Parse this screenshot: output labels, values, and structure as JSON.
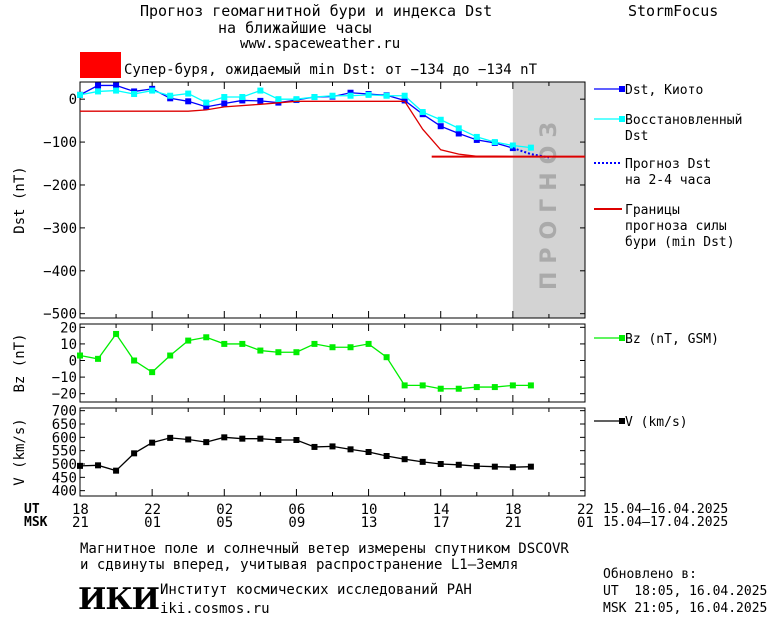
{
  "header": {
    "title_line1": "Прогноз геомагнитной бури и индекса Dst",
    "title_line2": "на ближайшие часы",
    "site": "www.spaceweather.ru",
    "brand": "StormFocus",
    "alert_text": "Супер-буря, ожидаемый min Dst: от −134 до −134 nT",
    "alert_color": "#ff0000"
  },
  "chart_data": [
    {
      "type": "line",
      "ylabel": "Dst (nT)",
      "ylim": [
        -510,
        40
      ],
      "yticks": [
        0,
        -100,
        -200,
        -300,
        -400,
        -500
      ],
      "ytick_labels": [
        "0",
        "−100",
        "−200",
        "−300",
        "−400",
        "−500"
      ],
      "forecast_band_label": "ПРОГНОЗ",
      "x": [
        18.0,
        19.0,
        20.0,
        21.0,
        22.0,
        23.0,
        24.0,
        25.0,
        26.0,
        27.0,
        28.0,
        29.0,
        30.0,
        31.0,
        32.0,
        33.0,
        34.0,
        35.0,
        36.0,
        37.0,
        38.0,
        39.0,
        40.0,
        41.0,
        42.0,
        43.0
      ],
      "series": [
        {
          "name": "Dst, Киото",
          "color": "#0000ff",
          "x": [
            18,
            19,
            20,
            21,
            22,
            23,
            24,
            25,
            26,
            27,
            28,
            29,
            30,
            31,
            32,
            33,
            34,
            35,
            36,
            37,
            38,
            39,
            40,
            41,
            42
          ],
          "values": [
            10,
            32,
            32,
            18,
            24,
            2,
            -5,
            -18,
            -10,
            -3,
            -4,
            -8,
            -2,
            5,
            6,
            15,
            12,
            9,
            -3,
            -35,
            -63,
            -80,
            -95,
            -102,
            -114
          ]
        },
        {
          "name": "Восстановленный Dst",
          "color": "#00ffff",
          "x": [
            18,
            19,
            20,
            21,
            22,
            23,
            24,
            25,
            26,
            27,
            28,
            29,
            30,
            31,
            32,
            33,
            34,
            35,
            36,
            37,
            38,
            39,
            40,
            41,
            42,
            43
          ],
          "values": [
            10,
            18,
            20,
            12,
            20,
            8,
            13,
            -8,
            5,
            5,
            20,
            0,
            0,
            5,
            8,
            8,
            10,
            8,
            8,
            -30,
            -48,
            -68,
            -88,
            -100,
            -108,
            -113
          ]
        },
        {
          "name": "Прогноз Dst на 2-4 часа",
          "color": "#0000ff",
          "x": [
            42,
            43,
            44
          ],
          "values": [
            -114,
            -128,
            -136
          ]
        },
        {
          "name": "Границы прогноза силы бури (min Dst)",
          "color": "#dd0000",
          "x": [
            18,
            21,
            24,
            25,
            26,
            28,
            30,
            32,
            34,
            36,
            37,
            38,
            39,
            40,
            41,
            42,
            43,
            44,
            45,
            46
          ],
          "values": [
            -28,
            -28,
            -28,
            -25,
            -18,
            -12,
            -5,
            -5,
            -5,
            -5,
            -70,
            -118,
            -128,
            -133,
            -133,
            -134,
            -134,
            -134,
            -134,
            -134
          ]
        }
      ]
    },
    {
      "type": "line",
      "ylabel": "Bz (nT)",
      "ylim": [
        -25,
        22
      ],
      "yticks": [
        20,
        10,
        0,
        -10,
        -20
      ],
      "ytick_labels": [
        "20",
        "10",
        "0",
        "−10",
        "−20"
      ],
      "series": [
        {
          "name": "Bz (nT, GSM)",
          "color": "#00ee00",
          "x": [
            18,
            19,
            20,
            21,
            22,
            23,
            24,
            25,
            26,
            27,
            28,
            29,
            30,
            31,
            32,
            33,
            34,
            35,
            36,
            37,
            38,
            39,
            40,
            41,
            42,
            43
          ],
          "values": [
            3,
            1,
            16,
            0,
            -7,
            3,
            12,
            14,
            10,
            10,
            6,
            5,
            5,
            10,
            8,
            8,
            10,
            2,
            -15,
            -15,
            -17,
            -17,
            -16,
            -16,
            -15,
            -15
          ]
        }
      ]
    },
    {
      "type": "line",
      "ylabel": "V (km/s)",
      "ylim": [
        380,
        710
      ],
      "yticks": [
        700,
        650,
        600,
        550,
        500,
        450,
        400
      ],
      "ytick_labels": [
        "700",
        "650",
        "600",
        "550",
        "500",
        "450",
        "400"
      ],
      "series": [
        {
          "name": "V (km/s)",
          "color": "#000000",
          "x": [
            18,
            19,
            20,
            21,
            22,
            23,
            24,
            25,
            26,
            27,
            28,
            29,
            30,
            31,
            32,
            33,
            34,
            35,
            36,
            37,
            38,
            39,
            40,
            41,
            42,
            43
          ],
          "values": [
            493,
            495,
            475,
            540,
            580,
            598,
            592,
            582,
            600,
            595,
            595,
            590,
            590,
            564,
            566,
            555,
            545,
            530,
            518,
            508,
            500,
            497,
            492,
            490,
            488,
            490
          ]
        }
      ]
    }
  ],
  "time_axis": {
    "ut_label": "UT",
    "msk_label": "MSK",
    "ut_ticks": [
      "18",
      "22",
      "02",
      "06",
      "10",
      "14",
      "18",
      "22"
    ],
    "msk_ticks": [
      "21",
      "01",
      "05",
      "09",
      "13",
      "17",
      "21",
      "01"
    ],
    "ut_range": "15.04–16.04.2025",
    "msk_range": "15.04–17.04.2025"
  },
  "footer": {
    "note_line1": "Магнитное поле и солнечный ветер измерены спутником DSCOVR",
    "note_line2": "и сдвинуты вперед, учитывая распространение L1–Земля",
    "logo": "ИКИ",
    "institute": "Институт космических исследований РАН",
    "institute_site": "iki.cosmos.ru",
    "updated_label": "Обновлено в:",
    "updated_ut": "UT  18:05, 16.04.2025",
    "updated_msk": "MSK 21:05, 16.04.2025"
  }
}
